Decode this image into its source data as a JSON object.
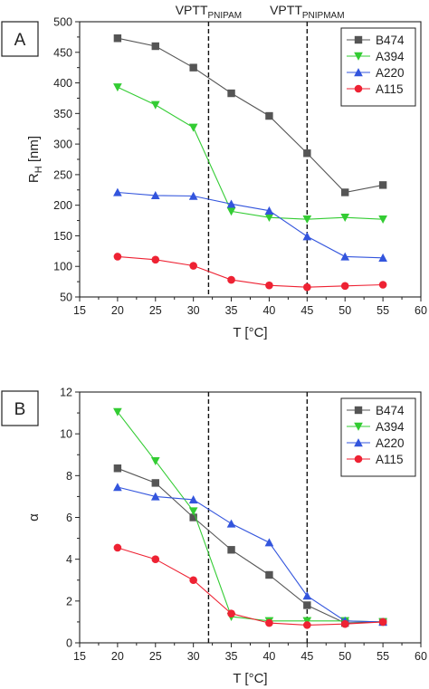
{
  "chart_data": [
    {
      "type": "line",
      "panel_label": "A",
      "title": "",
      "xlabel": "T [°C]",
      "ylabel_main": "R",
      "ylabel_sub": "H",
      "ylabel_unit": " [nm]",
      "xlim": [
        15,
        60
      ],
      "ylim": [
        50,
        500
      ],
      "xticks": [
        15,
        20,
        25,
        30,
        35,
        40,
        45,
        50,
        55,
        60
      ],
      "xtick_labels": [
        "15",
        "20",
        "25",
        "30",
        "35",
        "40",
        "45",
        "50",
        "55",
        "60"
      ],
      "yticks": [
        50,
        100,
        150,
        200,
        250,
        300,
        350,
        400,
        450,
        500
      ],
      "ytick_labels": [
        "50",
        "100",
        "150",
        "200",
        "250",
        "300",
        "350",
        "400",
        "450",
        "500"
      ],
      "grid": false,
      "legend_position": "top-right",
      "vlines": [
        {
          "x": 32,
          "label_main": "VPTT",
          "label_sub": "PNIPAM"
        },
        {
          "x": 45,
          "label_main": "VPTT",
          "label_sub": "PNIPMAM"
        }
      ],
      "x": [
        20,
        25,
        30,
        35,
        40,
        45,
        50,
        55
      ],
      "series": [
        {
          "name": "B474",
          "color": "#555555",
          "marker": "square",
          "values": [
            473,
            460,
            425,
            383,
            346,
            285,
            221,
            233
          ]
        },
        {
          "name": "A394",
          "color": "#33cc33",
          "marker": "triangle-down",
          "values": [
            393,
            364,
            327,
            190,
            180,
            177,
            180,
            177
          ]
        },
        {
          "name": "A220",
          "color": "#3355dd",
          "marker": "triangle-up",
          "values": [
            221,
            216,
            215,
            202,
            191,
            149,
            116,
            114
          ]
        },
        {
          "name": "A115",
          "color": "#ee2233",
          "marker": "circle",
          "values": [
            116,
            111,
            101,
            78,
            69,
            66,
            68,
            70
          ]
        }
      ]
    },
    {
      "type": "line",
      "panel_label": "B",
      "title": "",
      "xlabel": "T [°C]",
      "ylabel_main": "α",
      "ylabel_sub": "",
      "ylabel_unit": "",
      "xlim": [
        15,
        60
      ],
      "ylim": [
        0,
        12
      ],
      "xticks": [
        15,
        20,
        25,
        30,
        35,
        40,
        45,
        50,
        55,
        60
      ],
      "xtick_labels": [
        "15",
        "20",
        "25",
        "30",
        "35",
        "40",
        "45",
        "50",
        "55",
        "60"
      ],
      "yticks": [
        0,
        2,
        4,
        6,
        8,
        10,
        12
      ],
      "ytick_labels": [
        "0",
        "2",
        "4",
        "6",
        "8",
        "10",
        "12"
      ],
      "grid": false,
      "legend_position": "top-right",
      "vlines": [
        {
          "x": 32,
          "label_main": "",
          "label_sub": ""
        },
        {
          "x": 45,
          "label_main": "",
          "label_sub": ""
        }
      ],
      "x": [
        20,
        25,
        30,
        35,
        40,
        45,
        50,
        55
      ],
      "series": [
        {
          "name": "B474",
          "color": "#555555",
          "marker": "square",
          "values": [
            8.35,
            7.65,
            6.0,
            4.45,
            3.25,
            1.8,
            0.95,
            1.0
          ]
        },
        {
          "name": "A394",
          "color": "#33cc33",
          "marker": "triangle-down",
          "values": [
            11.05,
            8.7,
            6.3,
            1.25,
            1.05,
            1.05,
            1.05,
            1.0
          ]
        },
        {
          "name": "A220",
          "color": "#3355dd",
          "marker": "triangle-up",
          "values": [
            7.45,
            7.0,
            6.85,
            5.7,
            4.8,
            2.25,
            1.05,
            1.0
          ]
        },
        {
          "name": "A115",
          "color": "#ee2233",
          "marker": "circle",
          "values": [
            4.55,
            4.0,
            3.0,
            1.4,
            0.95,
            0.85,
            0.9,
            1.0
          ]
        }
      ]
    }
  ]
}
